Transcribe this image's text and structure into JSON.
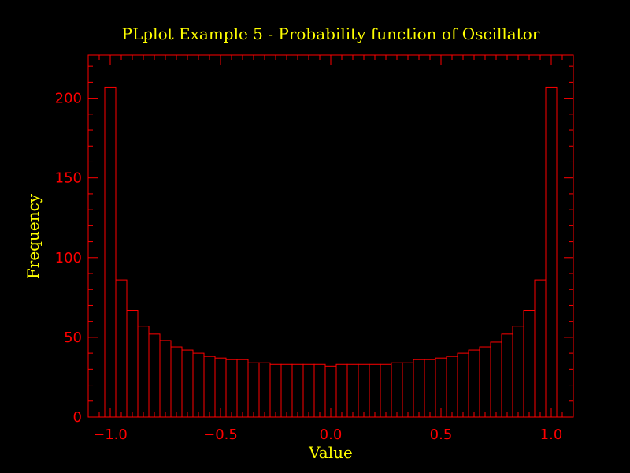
{
  "chart_data": {
    "type": "bar",
    "title": "PLplot Example 5 - Probability function of Oscillator",
    "xlabel": "Value",
    "ylabel": "Frequency",
    "xlim": [
      -1.1,
      1.1
    ],
    "ylim": [
      0,
      227
    ],
    "bin_width": 0.05,
    "x_start": -1.0,
    "grid": false,
    "legend": "none",
    "x_ticks": [
      {
        "value": -1.0,
        "label": "−1.0"
      },
      {
        "value": -0.5,
        "label": "−0.5"
      },
      {
        "value": 0.0,
        "label": "0.0"
      },
      {
        "value": 0.5,
        "label": "0.5"
      },
      {
        "value": 1.0,
        "label": "1.0"
      }
    ],
    "y_ticks": [
      {
        "value": 0,
        "label": "0"
      },
      {
        "value": 50,
        "label": "50"
      },
      {
        "value": 100,
        "label": "100"
      },
      {
        "value": 150,
        "label": "150"
      },
      {
        "value": 200,
        "label": "200"
      }
    ],
    "values": [
      207,
      86,
      67,
      57,
      52,
      48,
      44,
      42,
      40,
      38,
      37,
      36,
      36,
      34,
      34,
      33,
      33,
      33,
      33,
      33,
      32,
      33,
      33,
      33,
      33,
      33,
      34,
      34,
      36,
      36,
      37,
      38,
      40,
      42,
      44,
      47,
      52,
      57,
      67,
      86,
      207
    ],
    "colors": {
      "axes": "#ff0000",
      "bars": "#ff0000",
      "text": "#ffff00",
      "background": "#000000"
    }
  }
}
